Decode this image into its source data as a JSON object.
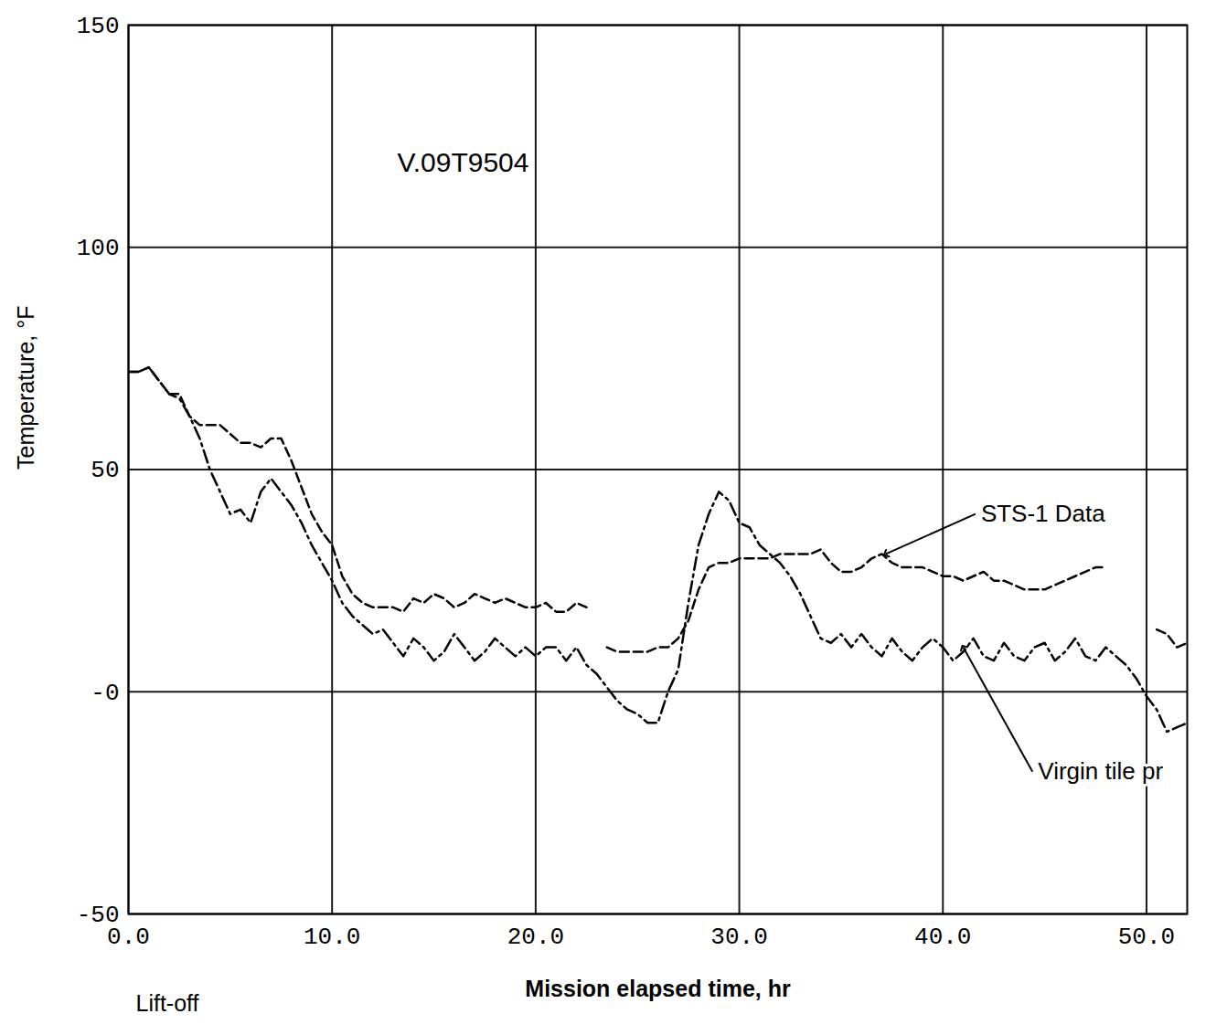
{
  "chart_data": {
    "type": "line",
    "x_label": "Mission elapsed time, hr",
    "y_label": "Temperature, °F",
    "xlim": [
      0,
      52
    ],
    "ylim": [
      -50,
      150
    ],
    "xticks": [
      {
        "value": 0,
        "label": "0.0"
      },
      {
        "value": 10,
        "label": "10.0"
      },
      {
        "value": 20,
        "label": "20.0"
      },
      {
        "value": 30,
        "label": "30.0"
      },
      {
        "value": 40,
        "label": "40.0"
      },
      {
        "value": 50,
        "label": "50.0"
      }
    ],
    "yticks": [
      -50,
      {
        "value": 0,
        "label": "-0"
      },
      50,
      100,
      150
    ],
    "grid": true,
    "x": [
      0,
      0.5,
      1,
      1.5,
      2,
      2.5,
      3,
      3.5,
      4,
      4.5,
      5,
      5.5,
      6,
      6.5,
      7,
      7.5,
      8,
      8.5,
      9,
      9.5,
      10,
      10.5,
      11,
      11.5,
      12,
      12.5,
      13,
      13.5,
      14,
      14.5,
      15,
      15.5,
      16,
      16.5,
      17,
      17.5,
      18,
      18.5,
      19,
      19.5,
      20,
      20.5,
      21,
      21.5,
      22,
      22.5,
      23,
      23.5,
      24,
      24.5,
      25,
      25.5,
      26,
      26.5,
      27,
      27.5,
      28,
      28.5,
      29,
      29.5,
      30,
      30.5,
      31,
      31.5,
      32,
      32.5,
      33,
      33.5,
      34,
      34.5,
      35,
      35.5,
      36,
      36.5,
      37,
      37.5,
      38,
      38.5,
      39,
      39.5,
      40,
      40.5,
      41,
      41.5,
      42,
      42.5,
      43,
      43.5,
      44,
      44.5,
      45,
      45.5,
      46,
      46.5,
      47,
      47.5,
      48,
      48.5,
      49,
      49.5,
      50,
      50.5,
      51,
      51.5,
      52
    ],
    "series": [
      {
        "name": "STS-1 Data",
        "color": "#000000",
        "line_style": "dashed",
        "values": [
          72,
          72,
          73,
          70,
          67,
          67,
          62,
          60,
          60,
          60,
          58,
          56,
          56,
          55,
          57,
          57,
          52,
          46,
          40,
          36,
          33,
          26,
          22,
          20,
          19,
          19,
          19,
          18,
          21,
          20,
          22,
          21,
          19,
          20,
          22,
          21,
          20,
          21,
          20,
          19,
          19,
          20,
          18,
          18,
          20,
          19,
          null,
          10,
          9,
          9,
          9,
          9,
          10,
          10,
          12,
          16,
          23,
          28,
          29,
          29,
          30,
          30,
          30,
          30,
          31,
          31,
          31,
          31,
          32,
          29,
          27,
          27,
          28,
          30,
          31,
          29,
          28,
          28,
          28,
          27,
          26,
          26,
          25,
          26,
          27,
          25,
          25,
          24,
          23,
          23,
          23,
          24,
          25,
          26,
          27,
          28,
          28,
          null,
          null,
          null,
          null,
          14,
          13,
          10,
          11
        ]
      },
      {
        "name": "Virgin tile pr",
        "color": "#000000",
        "line_style": "dashdot",
        "values": [
          72,
          72,
          73,
          70,
          67,
          66,
          62,
          57,
          50,
          45,
          40,
          41,
          38,
          45,
          48,
          45,
          42,
          38,
          33,
          29,
          25,
          20,
          17,
          15,
          13,
          14,
          11,
          8,
          12,
          10,
          7,
          9,
          13,
          10,
          7,
          9,
          12,
          10,
          8,
          10,
          8,
          10,
          10,
          7,
          10,
          6,
          4,
          1,
          -2,
          -4,
          -5,
          -7,
          -7,
          0,
          5,
          20,
          33,
          40,
          45,
          43,
          38,
          37,
          33,
          31,
          29,
          26,
          22,
          17,
          12,
          11,
          13,
          10,
          13,
          10,
          8,
          12,
          9,
          7,
          10,
          12,
          10,
          7,
          9,
          12,
          8,
          7,
          11,
          8,
          7,
          10,
          11,
          7,
          9,
          12,
          8,
          7,
          10,
          8,
          6,
          3,
          -1,
          -4,
          -9,
          -8,
          -7
        ]
      }
    ],
    "annotations": [
      {
        "text": "STS-1 Data",
        "x": 41.6,
        "y": 40,
        "point": [
          37.2,
          31
        ]
      },
      {
        "text": "Virgin tile pr",
        "x": 44.4,
        "y": -18,
        "point": [
          41,
          10
        ]
      },
      {
        "text": "V.09T9504",
        "x": 13.2,
        "y": 119
      },
      {
        "text": "Lift-off",
        "x": 0,
        "y": -50
      }
    ]
  }
}
